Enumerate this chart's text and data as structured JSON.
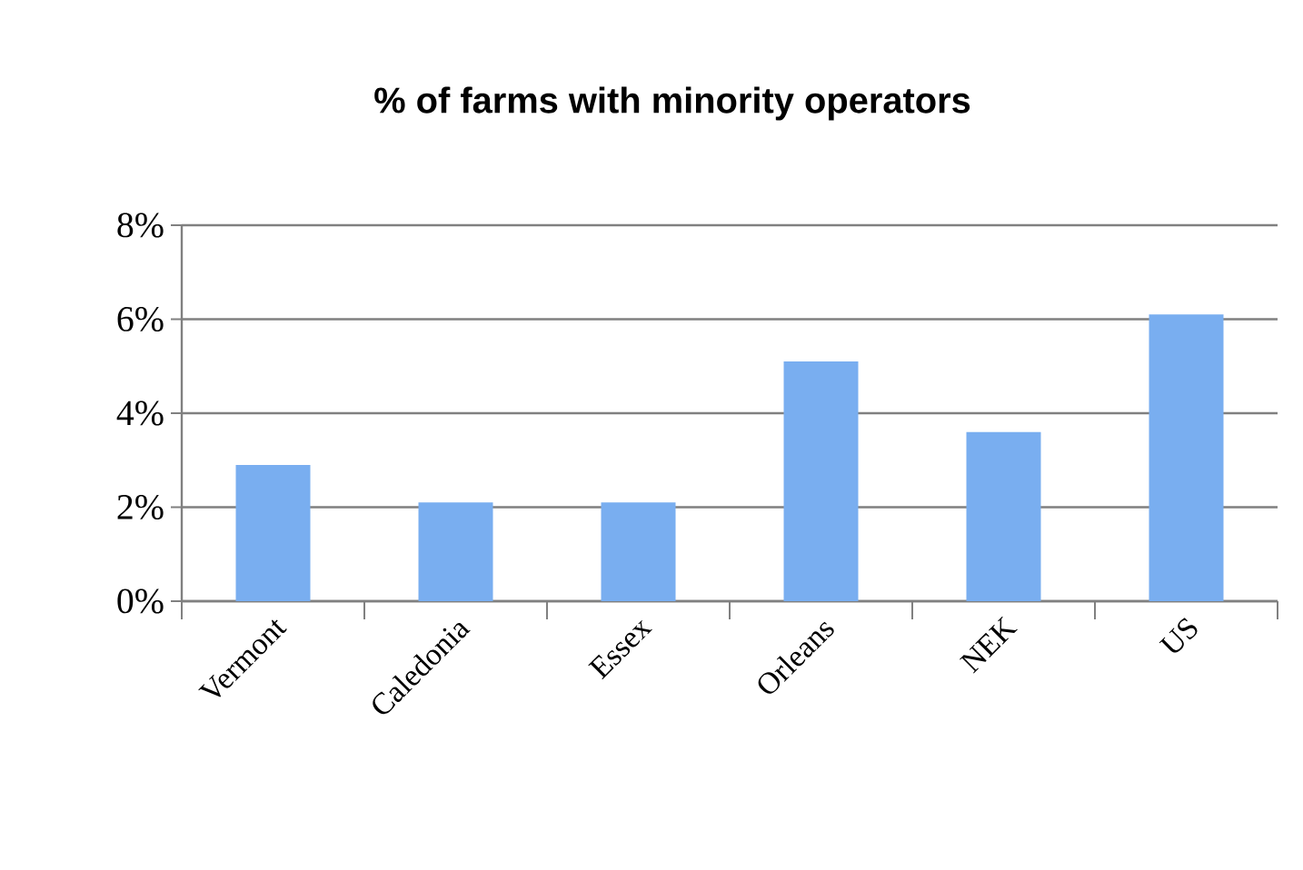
{
  "chart_data": {
    "type": "bar",
    "title": "% of farms with minority operators",
    "categories": [
      "Vermont",
      "Caledonia",
      "Essex",
      "Orleans",
      "NEK",
      "US"
    ],
    "values": [
      2.9,
      2.1,
      2.1,
      5.1,
      3.6,
      6.1
    ],
    "color": "#79aef0",
    "ylim": [
      0,
      8
    ],
    "yticks": [
      {
        "value": 0,
        "label": "0%"
      },
      {
        "value": 2,
        "label": "2%"
      },
      {
        "value": 4,
        "label": "4%"
      },
      {
        "value": 6,
        "label": "6%"
      },
      {
        "value": 8,
        "label": "8%"
      }
    ],
    "grid": "y"
  }
}
